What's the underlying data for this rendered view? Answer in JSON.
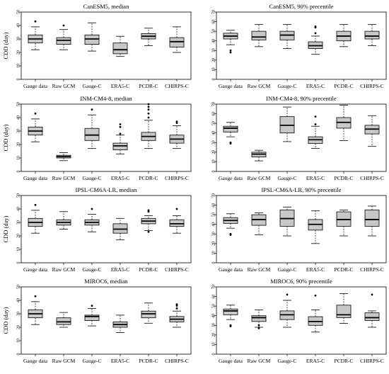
{
  "figure": {
    "box_color": "#c8c8c8",
    "line_color": "#000000"
  },
  "chart_data": [
    {
      "type": "boxplot",
      "title": "CanESM5, median",
      "ylabel": "CDD (day)",
      "ylim": [
        0,
        50
      ],
      "yticks": [
        0,
        10,
        20,
        30,
        40,
        50
      ],
      "categories": [
        "Gauge data",
        "Raw GCM",
        "Gauge-C",
        "ERA5-C",
        "PCDR-C",
        "CHIRPS-C"
      ],
      "boxes": [
        {
          "min": 22,
          "q1": 27,
          "median": 30,
          "q3": 33,
          "max": 39,
          "outliers": [
            43
          ]
        },
        {
          "min": 22,
          "q1": 26,
          "median": 29,
          "q3": 31,
          "max": 37,
          "outliers": [
            40
          ]
        },
        {
          "min": 21,
          "q1": 26,
          "median": 30,
          "q3": 33,
          "max": 42,
          "outliers": []
        },
        {
          "min": 17,
          "q1": 19,
          "median": 22,
          "q3": 27,
          "max": 32,
          "outliers": []
        },
        {
          "min": 25,
          "q1": 30,
          "median": 32,
          "q3": 34,
          "max": 38,
          "outliers": []
        },
        {
          "min": 20,
          "q1": 24,
          "median": 28,
          "q3": 31,
          "max": 39,
          "outliers": []
        }
      ]
    },
    {
      "type": "boxplot",
      "title": "CanESM5, 90% precentile",
      "ylabel": "",
      "ylim": [
        0,
        70
      ],
      "yticks": [
        0,
        10,
        20,
        30,
        40,
        50,
        60,
        70
      ],
      "categories": [
        "Gauge data",
        "Raw GCM",
        "Gauge-C",
        "ERA5-C",
        "PCDR-C",
        "CHIRPS-C"
      ],
      "boxes": [
        {
          "min": 36,
          "q1": 42,
          "median": 45,
          "q3": 48,
          "max": 51,
          "outliers": [
            30,
            28
          ]
        },
        {
          "min": 34,
          "q1": 41,
          "median": 44,
          "q3": 50,
          "max": 57,
          "outliers": []
        },
        {
          "min": 32,
          "q1": 41,
          "median": 46,
          "q3": 50,
          "max": 57,
          "outliers": []
        },
        {
          "min": 26,
          "q1": 32,
          "median": 35,
          "q3": 39,
          "max": 45,
          "outliers": [
            55,
            54,
            48
          ]
        },
        {
          "min": 34,
          "q1": 40,
          "median": 45,
          "q3": 50,
          "max": 57,
          "outliers": []
        },
        {
          "min": 35,
          "q1": 42,
          "median": 45,
          "q3": 50,
          "max": 57,
          "outliers": []
        }
      ]
    },
    {
      "type": "boxplot",
      "title": "INM-CM4-8, median",
      "ylabel": "CDD (day)",
      "ylim": [
        0,
        50
      ],
      "yticks": [
        0,
        10,
        20,
        30,
        40,
        50
      ],
      "categories": [
        "Gauge data",
        "Raw GCM",
        "Gauge-C",
        "ERA5-C",
        "PCDR-C",
        "CHIRPS-C"
      ],
      "boxes": [
        {
          "min": 22,
          "q1": 27,
          "median": 30,
          "q3": 33,
          "max": 39,
          "outliers": [
            43
          ]
        },
        {
          "min": 8,
          "q1": 10,
          "median": 11,
          "q3": 12,
          "max": 14,
          "outliers": []
        },
        {
          "min": 17,
          "q1": 23,
          "median": 27,
          "q3": 32,
          "max": 42,
          "outliers": [
            46
          ]
        },
        {
          "min": 13,
          "q1": 16,
          "median": 19,
          "q3": 21,
          "max": 27,
          "outliers": [
            28,
            33,
            35
          ]
        },
        {
          "min": 17,
          "q1": 23,
          "median": 26,
          "q3": 29,
          "max": 38,
          "outliers": [
            40,
            43,
            46,
            48,
            50
          ]
        },
        {
          "min": 17,
          "q1": 21,
          "median": 24,
          "q3": 27,
          "max": 34,
          "outliers": [
            36,
            37
          ]
        }
      ]
    },
    {
      "type": "boxplot",
      "title": "INM-CM4-8, 90% precentile",
      "ylabel": "",
      "ylim": [
        0,
        70
      ],
      "yticks": [
        0,
        10,
        20,
        30,
        40,
        50,
        60,
        70
      ],
      "categories": [
        "Gauge data",
        "Raw GCM",
        "Gauge-C",
        "ERA5-C",
        "PCDR-C",
        "CHIRPS-C"
      ],
      "boxes": [
        {
          "min": 36,
          "q1": 41,
          "median": 45,
          "q3": 47,
          "max": 51,
          "outliers": [
            30,
            29
          ]
        },
        {
          "min": 11,
          "q1": 15,
          "median": 18,
          "q3": 20,
          "max": 22,
          "outliers": []
        },
        {
          "min": 31,
          "q1": 40,
          "median": 48,
          "q3": 57,
          "max": 67,
          "outliers": []
        },
        {
          "min": 24,
          "q1": 29,
          "median": 33,
          "q3": 36,
          "max": 47,
          "outliers": [
            49,
            57
          ]
        },
        {
          "min": 32,
          "q1": 45,
          "median": 51,
          "q3": 56,
          "max": 69,
          "outliers": []
        },
        {
          "min": 26,
          "q1": 39,
          "median": 44,
          "q3": 48,
          "max": 58,
          "outliers": []
        }
      ]
    },
    {
      "type": "boxplot",
      "title": "IPSL-CM6A-LR, median",
      "ylabel": "CDD (day)",
      "ylim": [
        0,
        50
      ],
      "yticks": [
        0,
        10,
        20,
        30,
        40,
        50
      ],
      "categories": [
        "Gauge data",
        "Raw GCM",
        "Gauge-C",
        "ERA5-C",
        "PCDR-C",
        "CHIRPS-C"
      ],
      "boxes": [
        {
          "min": 22,
          "q1": 27,
          "median": 30,
          "q3": 33,
          "max": 39,
          "outliers": [
            43
          ]
        },
        {
          "min": 25,
          "q1": 28,
          "median": 30,
          "q3": 32,
          "max": 38,
          "outliers": []
        },
        {
          "min": 23,
          "q1": 28,
          "median": 30,
          "q3": 32,
          "max": 36,
          "outliers": [
            40
          ]
        },
        {
          "min": 17,
          "q1": 22,
          "median": 25,
          "q3": 29,
          "max": 33,
          "outliers": []
        },
        {
          "min": 24,
          "q1": 29,
          "median": 31,
          "q3": 33,
          "max": 35,
          "outliers": [
            38,
            39,
            23
          ]
        },
        {
          "min": 22,
          "q1": 27,
          "median": 29,
          "q3": 32,
          "max": 35,
          "outliers": [
            40
          ]
        }
      ]
    },
    {
      "type": "boxplot",
      "title": "IPSL-CM6A-LR, 90% precentile",
      "ylabel": "",
      "ylim": [
        0,
        70
      ],
      "yticks": [
        0,
        10,
        20,
        30,
        40,
        50,
        60,
        70
      ],
      "categories": [
        "Gauge data",
        "Raw GCM",
        "Gauge-C",
        "ERA5-C",
        "PCDR-C",
        "CHIRPS-C"
      ],
      "boxes": [
        {
          "min": 36,
          "q1": 41,
          "median": 44,
          "q3": 47,
          "max": 51,
          "outliers": [
            30,
            29
          ]
        },
        {
          "min": 29,
          "q1": 39,
          "median": 45,
          "q3": 50,
          "max": 52,
          "outliers": []
        },
        {
          "min": 28,
          "q1": 38,
          "median": 46,
          "q3": 55,
          "max": 58,
          "outliers": []
        },
        {
          "min": 20,
          "q1": 34,
          "median": 40,
          "q3": 45,
          "max": 54,
          "outliers": []
        },
        {
          "min": 28,
          "q1": 38,
          "median": 45,
          "q3": 53,
          "max": 55,
          "outliers": []
        },
        {
          "min": 28,
          "q1": 38,
          "median": 45,
          "q3": 55,
          "max": 59,
          "outliers": []
        }
      ]
    },
    {
      "type": "boxplot",
      "title": "MIROC6, median",
      "ylabel": "CDD (day)",
      "ylim": [
        0,
        50
      ],
      "yticks": [
        0,
        10,
        20,
        30,
        40,
        50
      ],
      "categories": [
        "Gauge data",
        "Raw GCM",
        "Gauge-C",
        "ERA5-C",
        "PCDR-C",
        "CHIRPS-C"
      ],
      "boxes": [
        {
          "min": 22,
          "q1": 27,
          "median": 30,
          "q3": 33,
          "max": 39,
          "outliers": [
            43
          ]
        },
        {
          "min": 20,
          "q1": 22,
          "median": 24,
          "q3": 27,
          "max": 31,
          "outliers": []
        },
        {
          "min": 21,
          "q1": 25,
          "median": 28,
          "q3": 29,
          "max": 34,
          "outliers": [
            36
          ]
        },
        {
          "min": 16,
          "q1": 20,
          "median": 22,
          "q3": 24,
          "max": 29,
          "outliers": []
        },
        {
          "min": 23,
          "q1": 27,
          "median": 30,
          "q3": 32,
          "max": 38,
          "outliers": []
        },
        {
          "min": 20,
          "q1": 24,
          "median": 26,
          "q3": 28,
          "max": 32,
          "outliers": [
            34,
            36,
            37
          ]
        }
      ]
    },
    {
      "type": "boxplot",
      "title": "MIROC6, 90% precentile",
      "ylabel": "",
      "ylim": [
        0,
        70
      ],
      "yticks": [
        0,
        10,
        20,
        30,
        40,
        50,
        60,
        70
      ],
      "categories": [
        "Gauge data",
        "Raw GCM",
        "Gauge-C",
        "ERA5-C",
        "PCDR-C",
        "CHIRPS-C"
      ],
      "boxes": [
        {
          "min": 36,
          "q1": 41,
          "median": 45,
          "q3": 47,
          "max": 51,
          "outliers": [
            30,
            29
          ]
        },
        {
          "min": 28,
          "q1": 34,
          "median": 38,
          "q3": 40,
          "max": 46,
          "outliers": [
            30,
            27
          ]
        },
        {
          "min": 28,
          "q1": 36,
          "median": 41,
          "q3": 45,
          "max": 56,
          "outliers": [
            62
          ]
        },
        {
          "min": 23,
          "q1": 30,
          "median": 34,
          "q3": 39,
          "max": 46,
          "outliers": [
            61
          ]
        },
        {
          "min": 32,
          "q1": 38,
          "median": 41,
          "q3": 51,
          "max": 63,
          "outliers": []
        },
        {
          "min": 28,
          "q1": 35,
          "median": 38,
          "q3": 43,
          "max": 45,
          "outliers": [
            62
          ]
        }
      ]
    }
  ]
}
